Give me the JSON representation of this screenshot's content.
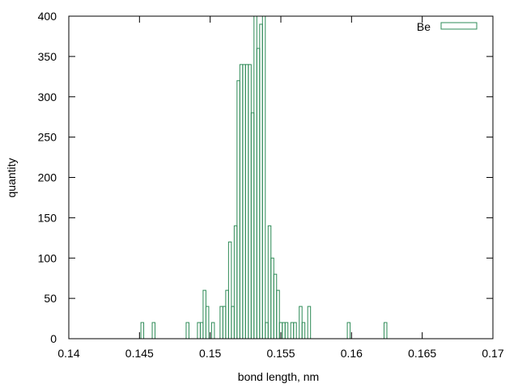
{
  "chart_data": {
    "type": "bar",
    "subtype": "histogram",
    "title": "",
    "xlabel": "bond length, nm",
    "ylabel": "quantity",
    "xlim": [
      0.14,
      0.17
    ],
    "ylim": [
      0,
      400
    ],
    "xticks": [
      "0.14",
      "0.145",
      "0.15",
      "0.155",
      "0.16",
      "0.165",
      "0.17"
    ],
    "yticks": [
      "0",
      "50",
      "100",
      "150",
      "200",
      "250",
      "300",
      "350",
      "400"
    ],
    "grid": false,
    "legend": "top-right",
    "bin_width": 0.0002,
    "series": [
      {
        "name": "Be",
        "color": "#2e8b57",
        "fill": "none",
        "bins": [
          {
            "x": 0.1452,
            "y": 20
          },
          {
            "x": 0.146,
            "y": 20
          },
          {
            "x": 0.1484,
            "y": 20
          },
          {
            "x": 0.1492,
            "y": 20
          },
          {
            "x": 0.1494,
            "y": 20
          },
          {
            "x": 0.1496,
            "y": 60
          },
          {
            "x": 0.1498,
            "y": 40
          },
          {
            "x": 0.1502,
            "y": 20
          },
          {
            "x": 0.1508,
            "y": 40
          },
          {
            "x": 0.151,
            "y": 40
          },
          {
            "x": 0.1512,
            "y": 60
          },
          {
            "x": 0.1514,
            "y": 120
          },
          {
            "x": 0.1516,
            "y": 40
          },
          {
            "x": 0.1518,
            "y": 140
          },
          {
            "x": 0.152,
            "y": 320
          },
          {
            "x": 0.1522,
            "y": 340
          },
          {
            "x": 0.1524,
            "y": 340
          },
          {
            "x": 0.1526,
            "y": 340
          },
          {
            "x": 0.1528,
            "y": 340
          },
          {
            "x": 0.153,
            "y": 280
          },
          {
            "x": 0.1532,
            "y": 400
          },
          {
            "x": 0.1534,
            "y": 360
          },
          {
            "x": 0.1536,
            "y": 390
          },
          {
            "x": 0.1538,
            "y": 400
          },
          {
            "x": 0.154,
            "y": 20
          },
          {
            "x": 0.1542,
            "y": 140
          },
          {
            "x": 0.1544,
            "y": 100
          },
          {
            "x": 0.1546,
            "y": 80
          },
          {
            "x": 0.1548,
            "y": 60
          },
          {
            "x": 0.155,
            "y": 20
          },
          {
            "x": 0.1552,
            "y": 20
          },
          {
            "x": 0.1554,
            "y": 20
          },
          {
            "x": 0.1558,
            "y": 20
          },
          {
            "x": 0.156,
            "y": 20
          },
          {
            "x": 0.1564,
            "y": 40
          },
          {
            "x": 0.1566,
            "y": 20
          },
          {
            "x": 0.157,
            "y": 40
          },
          {
            "x": 0.1598,
            "y": 20
          },
          {
            "x": 0.1624,
            "y": 20
          }
        ]
      }
    ]
  }
}
